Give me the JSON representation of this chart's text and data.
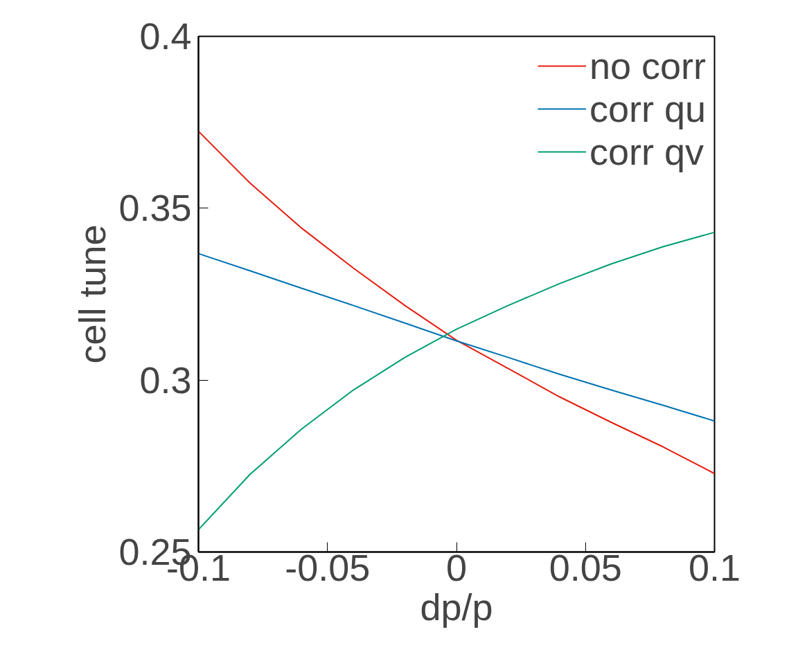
{
  "chart_data": {
    "type": "line",
    "xlabel": "dp/p",
    "ylabel": "cell tune",
    "x": [
      -0.1,
      -0.08,
      -0.06,
      -0.04,
      -0.02,
      0,
      0.02,
      0.04,
      0.06,
      0.08,
      0.1
    ],
    "series": [
      {
        "name": "no corr",
        "color": "#e51e10",
        "values": [
          0.3724,
          0.3573,
          0.3442,
          0.3326,
          0.3217,
          0.3116,
          0.3034,
          0.2951,
          0.2877,
          0.2806,
          0.2728
        ]
      },
      {
        "name": "corr qu",
        "color": "#0072b2",
        "values": [
          0.3368,
          0.3318,
          0.3267,
          0.3217,
          0.3166,
          0.3114,
          0.3066,
          0.3017,
          0.2971,
          0.2927,
          0.2881
        ]
      },
      {
        "name": "corr qv",
        "color": "#009e73",
        "values": [
          0.2565,
          0.2726,
          0.2858,
          0.2971,
          0.3066,
          0.3148,
          0.3217,
          0.3281,
          0.3338,
          0.3388,
          0.343
        ]
      }
    ],
    "xlim": [
      -0.1,
      0.1
    ],
    "ylim": [
      0.25,
      0.4
    ],
    "xticks": [
      -0.1,
      -0.05,
      0,
      0.05,
      0.1
    ],
    "yticks": [
      0.25,
      0.3,
      0.35,
      0.4
    ],
    "grid": false,
    "legend": "top right",
    "marker": "none",
    "line_style": "solid"
  }
}
